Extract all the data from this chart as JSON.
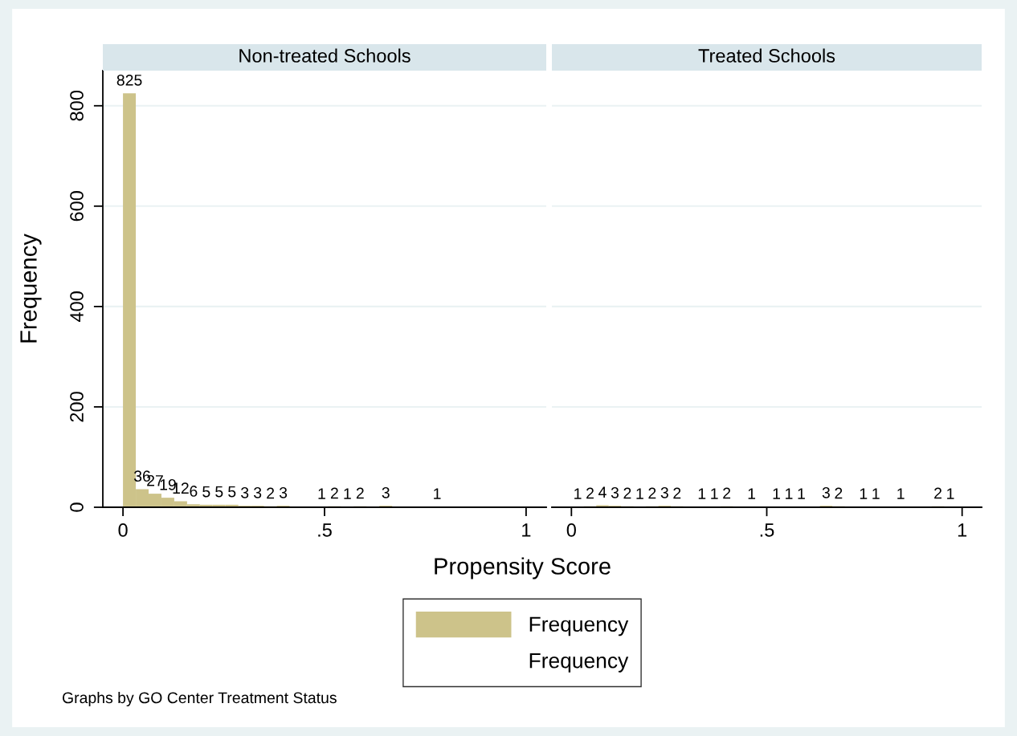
{
  "chart_data": [
    {
      "type": "histogram",
      "title": "Non-treated Schools",
      "xlabel": "Propensity Score",
      "ylabel": "Frequency",
      "bins": [
        0,
        0.0318,
        0.0636,
        0.0954,
        0.1272,
        0.159,
        0.1908,
        0.2226,
        0.2544,
        0.2862,
        0.318,
        0.3498,
        0.3816,
        0.4134,
        0.4452,
        0.477,
        0.5088,
        0.5406,
        0.5724,
        0.6042,
        0.636,
        0.6678,
        0.6996,
        0.7314,
        0.7632,
        0.795,
        0.8268,
        0.8586,
        0.8904,
        0.9222,
        0.954,
        0.9858
      ],
      "series": [
        {
          "name": "Frequency",
          "color": "#cdc38a",
          "values": [
            825,
            36,
            27,
            19,
            12,
            6,
            5,
            5,
            5,
            3,
            3,
            2,
            3,
            0,
            0,
            1,
            2,
            1,
            2,
            0,
            3,
            0,
            0,
            0,
            1,
            0,
            0,
            0,
            0,
            0,
            0
          ],
          "value_labels": [
            "825",
            "36",
            "27",
            "19",
            "12",
            "6",
            "5",
            "5",
            "5",
            "3",
            "3",
            "2",
            "3",
            null,
            null,
            "1",
            "2",
            "1",
            "2",
            null,
            "3",
            null,
            null,
            null,
            "1",
            null,
            null,
            null,
            null,
            null,
            null
          ]
        },
        {
          "name": "Frequency",
          "type": "scatter",
          "marker": "none"
        }
      ],
      "xlim": [
        -0.05,
        1.05
      ],
      "ylim": [
        0,
        870
      ],
      "xticks": [
        0,
        {
          "value": 0.5,
          "label": ".5"
        },
        1
      ],
      "yticks": [
        0,
        200,
        400,
        600,
        800
      ],
      "grid": "y",
      "legend": "bottom",
      "annotations": [
        "Graphs by GO Center Treatment Status"
      ]
    },
    {
      "type": "histogram",
      "title": "Treated Schools",
      "bins": [
        0,
        0.0318,
        0.0636,
        0.0954,
        0.1272,
        0.159,
        0.1908,
        0.2226,
        0.2544,
        0.2862,
        0.318,
        0.3498,
        0.3816,
        0.4134,
        0.4452,
        0.477,
        0.5088,
        0.5406,
        0.5724,
        0.6042,
        0.636,
        0.6678,
        0.6996,
        0.7314,
        0.7632,
        0.795,
        0.8268,
        0.8586,
        0.8904,
        0.9222,
        0.954,
        0.9858
      ],
      "series": [
        {
          "color": "#cdc38a",
          "values": [
            1,
            2,
            4,
            3,
            2,
            1,
            2,
            3,
            2,
            0,
            1,
            1,
            2,
            0,
            1,
            0,
            1,
            1,
            1,
            0,
            3,
            2,
            0,
            1,
            1,
            0,
            1,
            0,
            0,
            2,
            1
          ],
          "value_labels": [
            "1",
            "2",
            "4",
            "3",
            "2",
            "1",
            "2",
            "3",
            "2",
            null,
            "1",
            "1",
            "2",
            null,
            "1",
            null,
            "1",
            "1",
            "1",
            null,
            "3",
            "2",
            null,
            "1",
            "1",
            null,
            "1",
            null,
            null,
            "2",
            "1"
          ]
        }
      ],
      "xlim": [
        -0.05,
        1.05
      ],
      "xticks": [
        0,
        {
          "value": 0.5,
          "label": ".5"
        },
        1
      ],
      "yticks": [
        0,
        200,
        400,
        600,
        800
      ],
      "grid": "y",
      "tick_labels": "x"
    }
  ]
}
